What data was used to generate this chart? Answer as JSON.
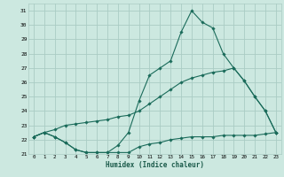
{
  "xlabel": "Humidex (Indice chaleur)",
  "bg_color": "#cce8e0",
  "grid_color": "#aaccc4",
  "line_color": "#1a6b5a",
  "xlim": [
    -0.5,
    23.5
  ],
  "ylim": [
    21.0,
    31.5
  ],
  "yticks": [
    21,
    22,
    23,
    24,
    25,
    26,
    27,
    28,
    29,
    30,
    31
  ],
  "xticks": [
    0,
    1,
    2,
    3,
    4,
    5,
    6,
    7,
    8,
    9,
    10,
    11,
    12,
    13,
    14,
    15,
    16,
    17,
    18,
    19,
    20,
    21,
    22,
    23
  ],
  "line1_x": [
    0,
    1,
    2,
    3,
    4,
    5,
    6,
    7,
    8,
    9,
    10,
    11,
    12,
    13,
    14,
    15,
    16,
    17,
    18,
    19,
    20,
    21,
    22,
    23
  ],
  "line1_y": [
    22.2,
    22.5,
    22.2,
    21.8,
    21.3,
    21.1,
    21.1,
    21.1,
    21.1,
    21.1,
    21.5,
    21.7,
    21.8,
    22.0,
    22.1,
    22.2,
    22.2,
    22.2,
    22.3,
    22.3,
    22.3,
    22.3,
    22.4,
    22.5
  ],
  "line2_x": [
    0,
    1,
    2,
    3,
    4,
    5,
    6,
    7,
    8,
    9,
    10,
    11,
    12,
    13,
    14,
    15,
    16,
    17,
    18,
    19,
    20,
    21,
    22,
    23
  ],
  "line2_y": [
    22.2,
    22.5,
    22.7,
    23.0,
    23.1,
    23.2,
    23.3,
    23.4,
    23.6,
    23.7,
    24.0,
    24.5,
    25.0,
    25.5,
    26.0,
    26.3,
    26.5,
    26.7,
    26.8,
    27.0,
    26.1,
    25.0,
    24.0,
    22.5
  ],
  "line3_x": [
    0,
    1,
    2,
    3,
    4,
    5,
    6,
    7,
    8,
    9,
    10,
    11,
    12,
    13,
    14,
    15,
    16,
    17,
    18,
    19,
    20,
    21,
    22,
    23
  ],
  "line3_y": [
    22.2,
    22.5,
    22.2,
    21.8,
    21.3,
    21.1,
    21.1,
    21.1,
    21.6,
    22.5,
    24.7,
    26.5,
    27.0,
    27.5,
    29.5,
    31.0,
    30.2,
    29.8,
    28.0,
    27.0,
    26.1,
    25.0,
    24.0,
    22.5
  ]
}
